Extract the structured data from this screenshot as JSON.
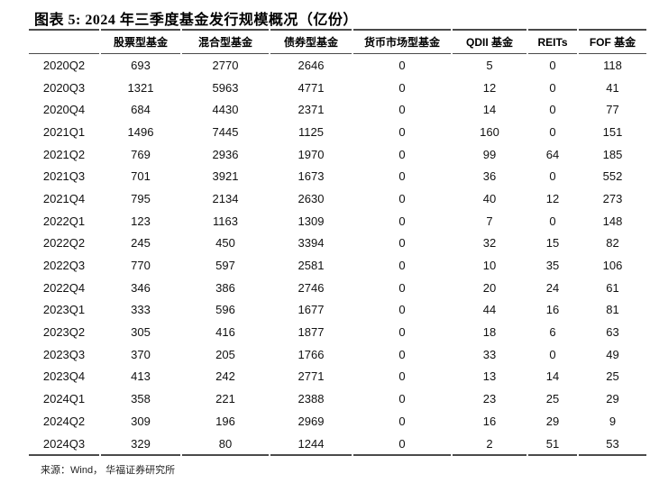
{
  "title": "图表 5:  2024 年三季度基金发行规模概况（亿份）",
  "source": "来源：Wind， 华福证券研究所",
  "colors": {
    "text": "#111111",
    "title_text": "#000000",
    "border": "#4a4a4a",
    "background": "#ffffff"
  },
  "chart_data": {
    "type": "table",
    "title": "2024 年三季度基金发行规模概况（亿份）",
    "columns": [
      "股票型基金",
      "混合型基金",
      "债券型基金",
      "货币市场型基金",
      "QDII 基金",
      "REITs",
      "FOF 基金"
    ],
    "rows": [
      {
        "quarter": "2020Q2",
        "values": [
          693,
          2770,
          2646,
          0,
          5,
          0,
          118
        ]
      },
      {
        "quarter": "2020Q3",
        "values": [
          1321,
          5963,
          4771,
          0,
          12,
          0,
          41
        ]
      },
      {
        "quarter": "2020Q4",
        "values": [
          684,
          4430,
          2371,
          0,
          14,
          0,
          77
        ]
      },
      {
        "quarter": "2021Q1",
        "values": [
          1496,
          7445,
          1125,
          0,
          160,
          0,
          151
        ]
      },
      {
        "quarter": "2021Q2",
        "values": [
          769,
          2936,
          1970,
          0,
          99,
          64,
          185
        ]
      },
      {
        "quarter": "2021Q3",
        "values": [
          701,
          3921,
          1673,
          0,
          36,
          0,
          552
        ]
      },
      {
        "quarter": "2021Q4",
        "values": [
          795,
          2134,
          2630,
          0,
          40,
          12,
          273
        ]
      },
      {
        "quarter": "2022Q1",
        "values": [
          123,
          1163,
          1309,
          0,
          7,
          0,
          148
        ]
      },
      {
        "quarter": "2022Q2",
        "values": [
          245,
          450,
          3394,
          0,
          32,
          15,
          82
        ]
      },
      {
        "quarter": "2022Q3",
        "values": [
          770,
          597,
          2581,
          0,
          10,
          35,
          106
        ]
      },
      {
        "quarter": "2022Q4",
        "values": [
          346,
          386,
          2746,
          0,
          20,
          24,
          61
        ]
      },
      {
        "quarter": "2023Q1",
        "values": [
          333,
          596,
          1677,
          0,
          44,
          16,
          81
        ]
      },
      {
        "quarter": "2023Q2",
        "values": [
          305,
          416,
          1877,
          0,
          18,
          6,
          63
        ]
      },
      {
        "quarter": "2023Q3",
        "values": [
          370,
          205,
          1766,
          0,
          33,
          0,
          49
        ]
      },
      {
        "quarter": "2023Q4",
        "values": [
          413,
          242,
          2771,
          0,
          13,
          14,
          25
        ]
      },
      {
        "quarter": "2024Q1",
        "values": [
          358,
          221,
          2388,
          0,
          23,
          25,
          29
        ]
      },
      {
        "quarter": "2024Q2",
        "values": [
          309,
          196,
          2969,
          0,
          16,
          29,
          9
        ]
      },
      {
        "quarter": "2024Q3",
        "values": [
          329,
          80,
          1244,
          0,
          2,
          51,
          53
        ]
      }
    ]
  }
}
